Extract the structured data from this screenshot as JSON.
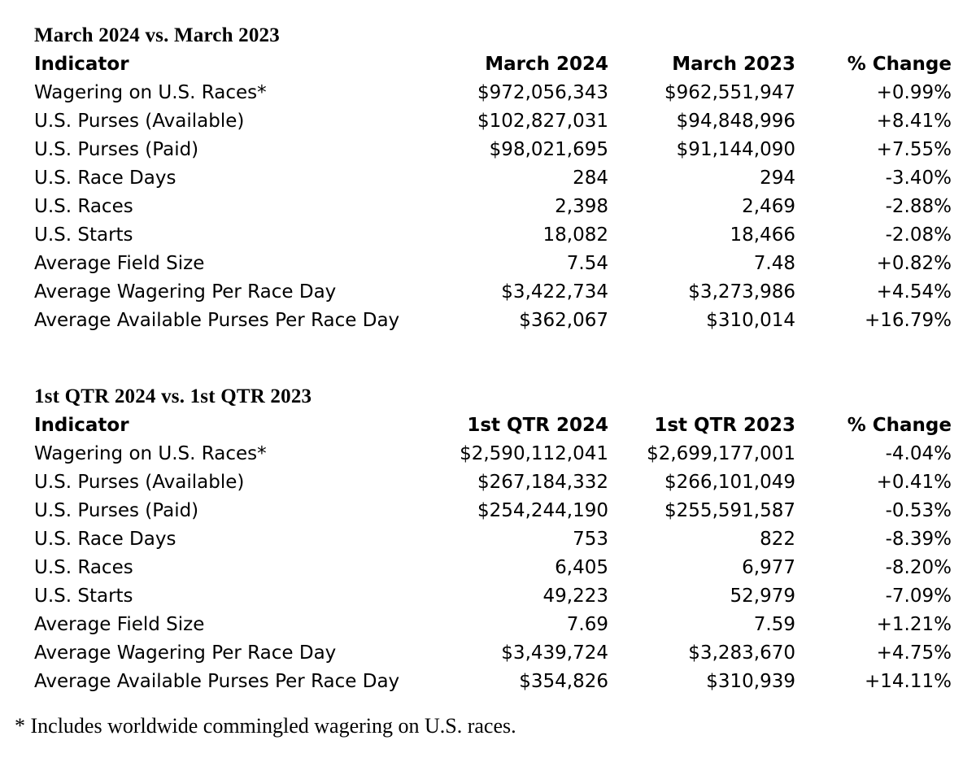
{
  "tables": [
    {
      "title": "March 2024 vs. March 2023",
      "columns": [
        "Indicator",
        "March 2024",
        "March 2023",
        "% Change"
      ],
      "rows": [
        [
          "Wagering on U.S. Races*",
          "$972,056,343",
          "$962,551,947",
          "+0.99%"
        ],
        [
          "U.S. Purses (Available)",
          "$102,827,031",
          "$94,848,996",
          "+8.41%"
        ],
        [
          "U.S. Purses (Paid)",
          "$98,021,695",
          "$91,144,090",
          "+7.55%"
        ],
        [
          "U.S. Race Days",
          "284",
          "294",
          "-3.40%"
        ],
        [
          "U.S. Races",
          "2,398",
          "2,469",
          "-2.88%"
        ],
        [
          "U.S. Starts",
          "18,082",
          "18,466",
          "-2.08%"
        ],
        [
          "Average Field Size",
          "7.54",
          "7.48",
          "+0.82%"
        ],
        [
          "Average Wagering Per Race Day",
          "$3,422,734",
          "$3,273,986",
          "+4.54%"
        ],
        [
          "Average Available Purses Per Race Day",
          "$362,067",
          "$310,014",
          "+16.79%"
        ]
      ]
    },
    {
      "title": "1st QTR 2024 vs. 1st QTR 2023",
      "columns": [
        "Indicator",
        "1st QTR 2024",
        "1st QTR 2023",
        "% Change"
      ],
      "rows": [
        [
          "Wagering on U.S. Races*",
          "$2,590,112,041",
          "$2,699,177,001",
          "-4.04%"
        ],
        [
          "U.S. Purses (Available)",
          "$267,184,332",
          "$266,101,049",
          "+0.41%"
        ],
        [
          "U.S. Purses (Paid)",
          "$254,244,190",
          "$255,591,587",
          "-0.53%"
        ],
        [
          "U.S. Race Days",
          "753",
          "822",
          "-8.39%"
        ],
        [
          "U.S. Races",
          "6,405",
          "6,977",
          "-8.20%"
        ],
        [
          "U.S. Starts",
          "49,223",
          "52,979",
          "-7.09%"
        ],
        [
          "Average Field Size",
          "7.69",
          "7.59",
          "+1.21%"
        ],
        [
          "Average Wagering Per Race Day",
          "$3,439,724",
          "$3,283,670",
          "+4.75%"
        ],
        [
          "Average Available Purses Per Race Day",
          "$354,826",
          "$310,939",
          "+14.11%"
        ]
      ]
    }
  ],
  "footnote": "* Includes worldwide commingled wagering on U.S. races."
}
